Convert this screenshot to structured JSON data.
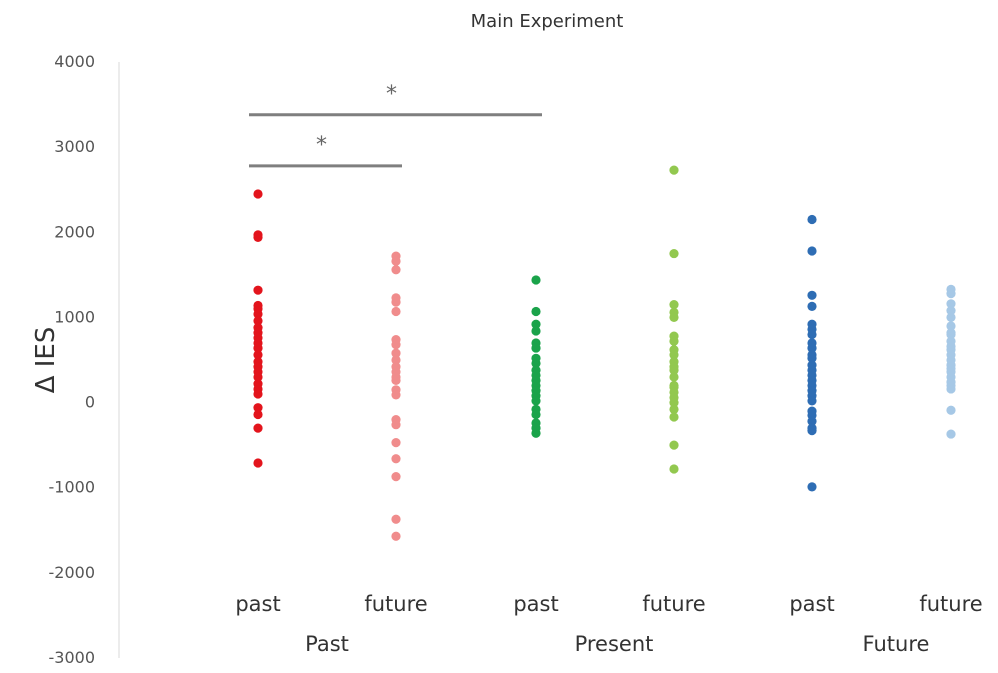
{
  "chart_data": {
    "type": "scatter",
    "title": "Main Experiment",
    "ylabel": "Δ IES",
    "ylim": [
      -3000,
      4000
    ],
    "yticks": [
      "4000",
      "3000",
      "2000",
      "1000",
      "0",
      "-1000",
      "-2000",
      "-3000"
    ],
    "groups": [
      "Past",
      "Present",
      "Future"
    ],
    "series": [
      {
        "name": "past",
        "group": "Past",
        "color": "#e3141c",
        "values": [
          2450,
          1970,
          1940,
          1320,
          1140,
          1100,
          1040,
          960,
          880,
          820,
          760,
          700,
          640,
          560,
          480,
          420,
          360,
          300,
          220,
          160,
          100,
          -60,
          -140,
          -300,
          -710
        ]
      },
      {
        "name": "future",
        "group": "Past",
        "color": "#f08c8c",
        "values": [
          1720,
          1660,
          1560,
          1230,
          1180,
          1070,
          740,
          680,
          580,
          500,
          420,
          360,
          300,
          260,
          150,
          90,
          -200,
          -260,
          -470,
          -660,
          -870,
          -1370,
          -1570
        ]
      },
      {
        "name": "past",
        "group": "Present",
        "color": "#1aa34a",
        "values": [
          1440,
          1070,
          920,
          840,
          700,
          640,
          520,
          460,
          380,
          320,
          260,
          200,
          140,
          80,
          20,
          -80,
          -140,
          -240,
          -300,
          -360
        ]
      },
      {
        "name": "future",
        "group": "Present",
        "color": "#92c84f",
        "values": [
          2730,
          1750,
          1150,
          1060,
          1000,
          780,
          720,
          620,
          560,
          480,
          420,
          380,
          300,
          200,
          180,
          120,
          60,
          0,
          -80,
          -170,
          -500,
          -780
        ]
      },
      {
        "name": "past",
        "group": "Future",
        "color": "#2e6db4",
        "values": [
          2150,
          1780,
          1260,
          1130,
          920,
          860,
          800,
          700,
          640,
          560,
          520,
          440,
          380,
          320,
          260,
          200,
          140,
          80,
          20,
          -100,
          -150,
          -220,
          -300,
          -330,
          -990
        ]
      },
      {
        "name": "future",
        "group": "Future",
        "color": "#a6c8e6",
        "values": [
          1330,
          1280,
          1160,
          1080,
          1000,
          900,
          820,
          800,
          720,
          660,
          620,
          560,
          500,
          440,
          400,
          360,
          300,
          240,
          200,
          160,
          -90,
          -370
        ]
      }
    ],
    "annotations": [
      {
        "label": "*",
        "from_series": 0,
        "to_series": 2,
        "y": 3380
      },
      {
        "label": "*",
        "from_series": 0,
        "to_series": 1,
        "y": 2780
      }
    ],
    "grid": false,
    "legend": "none"
  }
}
